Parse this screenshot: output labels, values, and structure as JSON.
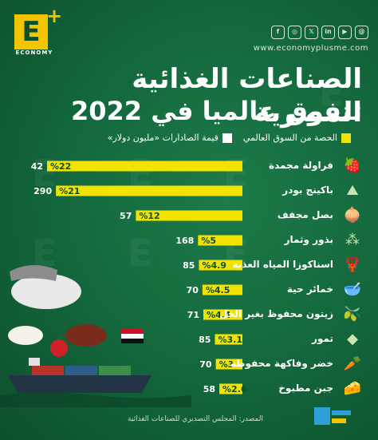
{
  "brand": {
    "letter": "E",
    "name": "ECONOMY",
    "website": "www.economyplusme.com"
  },
  "social_icons": [
    "facebook-icon",
    "instagram-icon",
    "twitter-icon",
    "linkedin-icon",
    "youtube-icon",
    "threads-icon"
  ],
  "social_glyphs": [
    "f",
    "◎",
    "𝕏",
    "in",
    "▶",
    "@"
  ],
  "title_line1": "الصناعات الغذائية المصرية",
  "title_line2": "تتفوق عالميا في 2022",
  "legend": {
    "share": "الحصة من السوق العالمي",
    "value": "قيمة الصادارات «مليون دولار»"
  },
  "colors": {
    "share_bar": "#f2e200",
    "value_bar": "#ffffff",
    "share_text": "#0d4f2d",
    "background": "#146a3e"
  },
  "chart_data": {
    "type": "bar",
    "orientation": "horizontal",
    "categories": [
      "فراولة مجمدة",
      "باكينج بودر",
      "بصل مجفف",
      "بذور وثمار",
      "اسناكوزا المياه العذبة",
      "خمائر حية",
      "زيتون محفوظ بغير الخل",
      "تمور",
      "خضر وفاكهة محفوظة",
      "جبن مطبوخ"
    ],
    "icons": [
      "strawberry-icon",
      "baking-powder-icon",
      "onion-icon",
      "seeds-icon",
      "crayfish-icon",
      "yeast-icon",
      "olive-icon",
      "dates-icon",
      "vegetables-icon",
      "cheese-icon"
    ],
    "icon_glyphs": [
      "🍓",
      "⛰",
      "🧅",
      "⁂",
      "🦞",
      "🥣",
      "🫒",
      "◆",
      "🥕",
      "🧀"
    ],
    "series": [
      {
        "name": "الحصة من السوق العالمي",
        "values": [
          22,
          21,
          12,
          5,
          4.9,
          4.5,
          4.4,
          3.1,
          3,
          2.6
        ],
        "labels": [
          "%22",
          "%21",
          "%12",
          "%5",
          "%4.9",
          "%4.5",
          "%4.4",
          "%3.1",
          "%3",
          "%2.6"
        ]
      },
      {
        "name": "قيمة الصادارات «مليون دولار»",
        "values": [
          42,
          290,
          57,
          168,
          85,
          70,
          71,
          85,
          70,
          58
        ],
        "labels": [
          "42",
          "290",
          "57",
          "168",
          "85",
          "70",
          "71",
          "85",
          "70",
          "58"
        ]
      }
    ],
    "xlim": [
      0,
      22
    ]
  },
  "source": "المصدر: المجلس التصديري للصناعات الغذائية"
}
